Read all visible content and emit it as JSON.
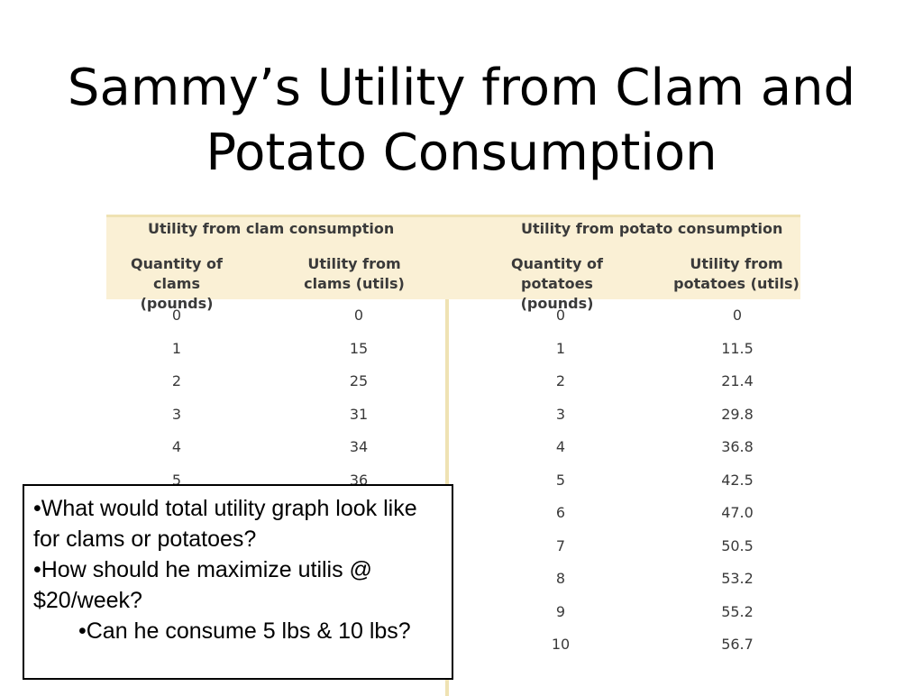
{
  "slide": {
    "title_line1": "Sammy’s Utility from Clam and",
    "title_line2": "Potato Consumption"
  },
  "table": {
    "group_clam": "Utility from clam consumption",
    "group_potato": "Utility from potato consumption",
    "headers": [
      "Quantity of clams\n(pounds)",
      "Utility from\nclams (utils)",
      "Quantity of\npotatoes (pounds)",
      "Utility from\npotatoes (utils)"
    ],
    "clam_rows": [
      {
        "q": "0",
        "u": "0"
      },
      {
        "q": "1",
        "u": "15"
      },
      {
        "q": "2",
        "u": "25"
      },
      {
        "q": "3",
        "u": "31"
      },
      {
        "q": "4",
        "u": "34"
      },
      {
        "q": "5",
        "u": "36"
      }
    ],
    "potato_rows": [
      {
        "q": "0",
        "u": "0"
      },
      {
        "q": "1",
        "u": "11.5"
      },
      {
        "q": "2",
        "u": "21.4"
      },
      {
        "q": "3",
        "u": "29.8"
      },
      {
        "q": "4",
        "u": "36.8"
      },
      {
        "q": "5",
        "u": "42.5"
      },
      {
        "q": "6",
        "u": "47.0"
      },
      {
        "q": "7",
        "u": "50.5"
      },
      {
        "q": "8",
        "u": "53.2"
      },
      {
        "q": "9",
        "u": "55.2"
      },
      {
        "q": "10",
        "u": "56.7"
      }
    ]
  },
  "note": {
    "bullet1": "•What would total utility graph look like for clams or potatoes?",
    "bullet2": "•How should he maximize utilis @ $20/week?",
    "bullet3": "•Can he consume 5 lbs & 10 lbs?"
  }
}
